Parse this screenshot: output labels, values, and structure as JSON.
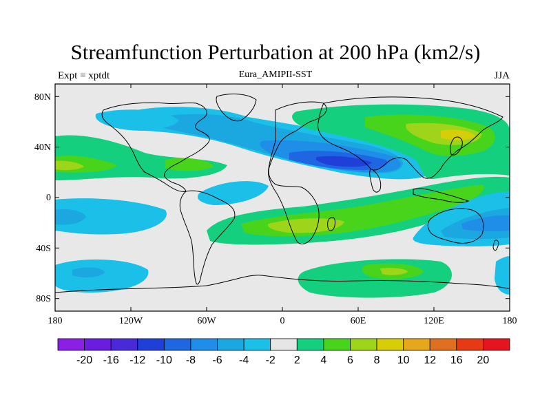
{
  "header": {
    "title": "Streamfunction Perturbation at 200 hPa (km2/s)",
    "left": "Expt = xptdt",
    "center": "Eura_AMIPII-SST",
    "right": "JJA"
  },
  "map": {
    "lat_ticks": [
      "80N",
      "40N",
      "0",
      "40S",
      "80S"
    ],
    "lon_ticks": [
      "180",
      "120W",
      "60W",
      "0",
      "60E",
      "120E",
      "180"
    ],
    "lat_range": [
      -90,
      90
    ],
    "lon_range": [
      -180,
      180
    ]
  },
  "colorbar": {
    "colors": [
      "#8c1fe6",
      "#6a1de0",
      "#4a2ad8",
      "#1e3fd8",
      "#1f66e3",
      "#1f8ee8",
      "#1ba7e0",
      "#1bc0e8",
      "#e6e6e6",
      "#14d07e",
      "#48d41a",
      "#9ed51a",
      "#d6cf08",
      "#e6a81a",
      "#e0701f",
      "#e63a14",
      "#e6141e"
    ],
    "labels": [
      "-20",
      "-16",
      "-12",
      "-10",
      "-8",
      "-6",
      "-4",
      "-2",
      "2",
      "4",
      "6",
      "8",
      "10",
      "12",
      "16",
      "20"
    ]
  }
}
